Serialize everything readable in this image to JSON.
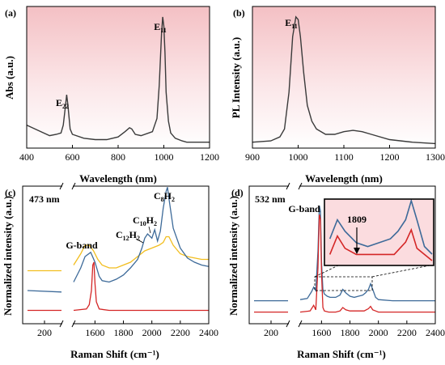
{
  "chart_data": [
    {
      "panel": "(a)",
      "type": "line",
      "xlabel": "Wavelength (nm)",
      "ylabel": "Abs (a.u.)",
      "xlim": [
        400,
        1200
      ],
      "xticks": [
        "400",
        "600",
        "800",
        "1000",
        "1200"
      ],
      "yticks": [],
      "background": "pink-gradient",
      "annotations": [
        {
          "label": "E",
          "sub": "22",
          "x": 575
        },
        {
          "label": "E",
          "sub": "11",
          "x": 995
        }
      ],
      "series": [
        {
          "color": "#3a3a3a",
          "x": [
            400,
            450,
            500,
            530,
            550,
            560,
            570,
            575,
            580,
            590,
            600,
            650,
            700,
            750,
            800,
            830,
            850,
            860,
            875,
            900,
            950,
            970,
            980,
            990,
            995,
            1000,
            1005,
            1010,
            1020,
            1030,
            1050,
            1080,
            1100,
            1150,
            1200
          ],
          "y": [
            0.15,
            0.11,
            0.07,
            0.08,
            0.09,
            0.15,
            0.3,
            0.38,
            0.31,
            0.12,
            0.08,
            0.05,
            0.04,
            0.04,
            0.06,
            0.1,
            0.13,
            0.12,
            0.08,
            0.07,
            0.1,
            0.2,
            0.45,
            0.85,
            0.97,
            0.9,
            0.7,
            0.4,
            0.18,
            0.09,
            0.05,
            0.03,
            0.02,
            0.02,
            0.02
          ]
        }
      ]
    },
    {
      "panel": "(b)",
      "type": "line",
      "xlabel": "Wavelength (nm)",
      "ylabel": "PL Intensity (a.u.)",
      "xlim": [
        900,
        1300
      ],
      "xticks": [
        "900",
        "1000",
        "1100",
        "1200",
        "1300"
      ],
      "yticks": [],
      "background": "pink-gradient",
      "annotations": [
        {
          "label": "E",
          "sub": "11",
          "x": 997
        }
      ],
      "series": [
        {
          "color": "#3a3a3a",
          "x": [
            900,
            940,
            960,
            970,
            980,
            988,
            995,
            1000,
            1005,
            1012,
            1020,
            1030,
            1040,
            1060,
            1080,
            1100,
            1120,
            1140,
            1160,
            1200,
            1250,
            1300
          ],
          "y": [
            0.02,
            0.03,
            0.06,
            0.12,
            0.4,
            0.82,
            0.97,
            0.95,
            0.82,
            0.55,
            0.3,
            0.18,
            0.12,
            0.08,
            0.08,
            0.1,
            0.11,
            0.1,
            0.08,
            0.04,
            0.02,
            0.01
          ]
        }
      ]
    },
    {
      "panel": "(c)",
      "type": "line",
      "xlabel": "Raman Shift (cm⁻¹)",
      "ylabel": "Normalized intensity (a.u.)",
      "note": "473 nm",
      "xticks": [
        "200",
        "1600",
        "1800",
        "2000",
        "2200",
        "2400"
      ],
      "yticks": [],
      "axis_break": true,
      "annotations": [
        {
          "label": "G-band"
        },
        {
          "label": "C",
          "sub1": "12",
          "mid": "H",
          "sub2": "2"
        },
        {
          "label": "C",
          "sub1": "10",
          "mid": "H",
          "sub2": "2"
        },
        {
          "label": "C",
          "sub1": "8",
          "mid": "H",
          "sub2": "2"
        }
      ],
      "series": [
        {
          "color": "#f2be1f",
          "x": [
            100,
            300,
            1450,
            1500,
            1530,
            1560,
            1590,
            1620,
            1650,
            1700,
            1750,
            1800,
            1850,
            1900,
            1950,
            2000,
            2050,
            2080,
            2100,
            2120,
            2150,
            2200,
            2250,
            2300,
            2350,
            2400
          ],
          "y": [
            0.34,
            0.34,
            0.38,
            0.46,
            0.52,
            0.52,
            0.48,
            0.42,
            0.38,
            0.36,
            0.36,
            0.38,
            0.4,
            0.44,
            0.48,
            0.5,
            0.52,
            0.54,
            0.58,
            0.58,
            0.52,
            0.46,
            0.44,
            0.43,
            0.42,
            0.42
          ]
        },
        {
          "color": "#3d6a99",
          "x": [
            100,
            300,
            1450,
            1500,
            1530,
            1570,
            1600,
            1630,
            1650,
            1700,
            1750,
            1800,
            1850,
            1900,
            1930,
            1950,
            1970,
            2000,
            2020,
            2040,
            2060,
            2080,
            2100,
            2110,
            2120,
            2150,
            2200,
            2250,
            2300,
            2350,
            2400
          ],
          "y": [
            0.2,
            0.19,
            0.26,
            0.36,
            0.44,
            0.47,
            0.4,
            0.3,
            0.27,
            0.26,
            0.28,
            0.31,
            0.36,
            0.42,
            0.5,
            0.57,
            0.6,
            0.57,
            0.63,
            0.55,
            0.62,
            0.78,
            0.9,
            0.93,
            0.85,
            0.64,
            0.5,
            0.43,
            0.4,
            0.38,
            0.37
          ]
        },
        {
          "color": "#d42626",
          "x": [
            100,
            300,
            1450,
            1540,
            1560,
            1575,
            1585,
            1593,
            1600,
            1610,
            1630,
            1700,
            1800,
            1900,
            2000,
            2100,
            2200,
            2300,
            2400
          ],
          "y": [
            0.06,
            0.06,
            0.06,
            0.07,
            0.1,
            0.2,
            0.38,
            0.4,
            0.25,
            0.12,
            0.07,
            0.06,
            0.06,
            0.06,
            0.06,
            0.06,
            0.06,
            0.06,
            0.06
          ]
        }
      ]
    },
    {
      "panel": "(d)",
      "type": "line",
      "xlabel": "Raman Shift (cm⁻¹)",
      "ylabel": "Normalized intensity (a.u.)",
      "note": "532 nm",
      "xticks": [
        "200",
        "1600",
        "1800",
        "2000",
        "2200",
        "2400"
      ],
      "yticks": [],
      "axis_break": true,
      "annotations": [
        {
          "label": "G-band"
        },
        {
          "label": "1809"
        }
      ],
      "inset": {
        "xlim": [
          1720,
          2000
        ]
      },
      "series": [
        {
          "color": "#3d6a99",
          "x": [
            100,
            300,
            1450,
            1500,
            1530,
            1545,
            1560,
            1575,
            1585,
            1593,
            1600,
            1610,
            1620,
            1640,
            1660,
            1700,
            1730,
            1750,
            1770,
            1800,
            1830,
            1860,
            1890,
            1910,
            1930,
            1945,
            1960,
            1980,
            2000,
            2100,
            2200,
            2300,
            2400
          ],
          "y": [
            0.16,
            0.16,
            0.17,
            0.18,
            0.24,
            0.28,
            0.25,
            0.6,
            1.0,
            0.95,
            0.5,
            0.26,
            0.22,
            0.2,
            0.19,
            0.19,
            0.21,
            0.26,
            0.23,
            0.2,
            0.19,
            0.2,
            0.21,
            0.23,
            0.26,
            0.31,
            0.26,
            0.19,
            0.17,
            0.16,
            0.16,
            0.16,
            0.16
          ]
        },
        {
          "color": "#d42626",
          "x": [
            100,
            300,
            1450,
            1520,
            1545,
            1560,
            1575,
            1585,
            1593,
            1600,
            1610,
            1620,
            1650,
            1700,
            1730,
            1750,
            1770,
            1800,
            1850,
            1900,
            1930,
            1945,
            1960,
            1980,
            2000,
            2100,
            2200,
            2300,
            2400
          ],
          "y": [
            0.06,
            0.06,
            0.06,
            0.07,
            0.12,
            0.08,
            0.45,
            0.92,
            0.88,
            0.4,
            0.1,
            0.07,
            0.06,
            0.06,
            0.07,
            0.1,
            0.08,
            0.07,
            0.07,
            0.07,
            0.09,
            0.11,
            0.08,
            0.07,
            0.06,
            0.06,
            0.06,
            0.06,
            0.06
          ]
        }
      ]
    }
  ]
}
